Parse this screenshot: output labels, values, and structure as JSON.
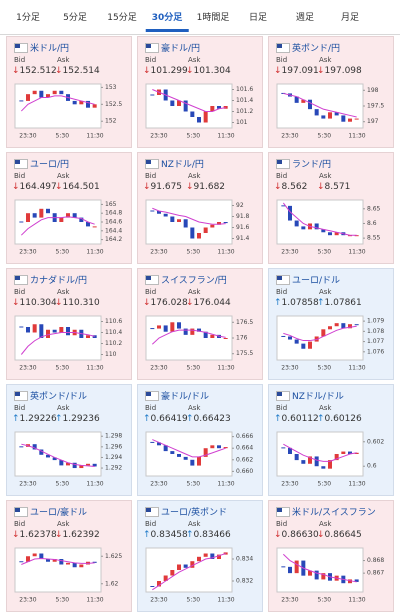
{
  "tabs": [
    "1分足",
    "5分足",
    "15分足",
    "30分足",
    "1時間足",
    "日足",
    "週足",
    "月足"
  ],
  "selected_tab": 3,
  "bid_label": "Bid",
  "ask_label": "Ask",
  "time_labels": [
    "23:30",
    "5:30",
    "11:30"
  ],
  "tiles": [
    {
      "name": "米ドル/円",
      "trend": "down",
      "bid": "↓152.512",
      "ask": "↓152.514",
      "ylim": [
        151.8,
        153.1
      ],
      "yticks": [
        153,
        152.5,
        152
      ],
      "closes": [
        152.6,
        152.8,
        152.9,
        152.7,
        152.8,
        152.9,
        152.8,
        152.6,
        152.5,
        152.6,
        152.4,
        152.5
      ],
      "ma": [
        152.3,
        152.5,
        152.6,
        152.7,
        152.7,
        152.75,
        152.75,
        152.7,
        152.65,
        152.6,
        152.55,
        152.5
      ]
    },
    {
      "name": "豪ドル/円",
      "trend": "down",
      "bid": "↓101.299",
      "ask": "↓101.304",
      "ylim": [
        100.9,
        101.7
      ],
      "yticks": [
        101.6,
        101.4,
        101.2,
        101
      ],
      "closes": [
        101.5,
        101.6,
        101.4,
        101.3,
        101.4,
        101.2,
        101.1,
        101.0,
        101.2,
        101.3,
        101.25,
        101.3
      ],
      "ma": [
        101.6,
        101.55,
        101.5,
        101.45,
        101.4,
        101.35,
        101.3,
        101.25,
        101.2,
        101.2,
        101.25,
        101.27
      ]
    },
    {
      "name": "英ポンド/円",
      "trend": "down",
      "bid": "↓197.091",
      "ask": "↓197.098",
      "ylim": [
        196.8,
        198.2
      ],
      "yticks": [
        198,
        197.5,
        197
      ],
      "closes": [
        197.9,
        197.8,
        197.6,
        197.7,
        197.4,
        197.2,
        197.1,
        197.3,
        197.2,
        197.0,
        197.1,
        197.1
      ],
      "ma": [
        197.9,
        197.85,
        197.8,
        197.7,
        197.6,
        197.5,
        197.4,
        197.35,
        197.3,
        197.25,
        197.2,
        197.15
      ]
    },
    {
      "name": "ユーロ/円",
      "trend": "down",
      "bid": "↓164.497",
      "ask": "↓164.501",
      "ylim": [
        164.1,
        165.1
      ],
      "yticks": [
        165,
        164.8,
        164.6,
        164.4,
        164.2
      ],
      "closes": [
        164.6,
        164.8,
        164.7,
        164.9,
        164.8,
        164.6,
        164.7,
        164.8,
        164.7,
        164.6,
        164.5,
        164.5
      ],
      "ma": [
        164.3,
        164.45,
        164.55,
        164.65,
        164.7,
        164.7,
        164.7,
        164.72,
        164.7,
        164.68,
        164.6,
        164.55
      ]
    },
    {
      "name": "NZドル/円",
      "trend": "down",
      "bid": "↓91.675",
      "ask": "↓91.682",
      "ylim": [
        91.3,
        92.1
      ],
      "yticks": [
        92,
        91.8,
        91.6,
        91.4
      ],
      "closes": [
        91.9,
        91.85,
        91.8,
        91.7,
        91.75,
        91.6,
        91.4,
        91.5,
        91.6,
        91.65,
        91.7,
        91.68
      ],
      "ma": [
        91.95,
        91.9,
        91.88,
        91.85,
        91.82,
        91.8,
        91.75,
        91.7,
        91.68,
        91.66,
        91.66,
        91.67
      ]
    },
    {
      "name": "ランド/円",
      "trend": "down",
      "bid": "↓8.562",
      "ask": "↓8.571",
      "ylim": [
        8.53,
        8.68
      ],
      "yticks": [
        8.65,
        8.6,
        8.55
      ],
      "closes": [
        8.66,
        8.61,
        8.59,
        8.58,
        8.6,
        8.58,
        8.57,
        8.56,
        8.57,
        8.56,
        8.56,
        8.56
      ],
      "ma": [
        8.67,
        8.64,
        8.62,
        8.6,
        8.59,
        8.585,
        8.58,
        8.575,
        8.57,
        8.565,
        8.56,
        8.56
      ]
    },
    {
      "name": "カナダドル/円",
      "trend": "down",
      "bid": "↓110.304",
      "ask": "↓110.310",
      "ylim": [
        109.9,
        110.7
      ],
      "yticks": [
        110.6,
        110.4,
        110.2,
        110
      ],
      "closes": [
        110.5,
        110.4,
        110.55,
        110.3,
        110.45,
        110.4,
        110.5,
        110.35,
        110.45,
        110.3,
        110.35,
        110.3
      ],
      "ma": [
        110.0,
        110.15,
        110.25,
        110.32,
        110.36,
        110.38,
        110.4,
        110.4,
        110.4,
        110.38,
        110.36,
        110.33
      ]
    },
    {
      "name": "スイスフラン/円",
      "trend": "down",
      "bid": "↓176.028",
      "ask": "↓176.044",
      "ylim": [
        175.3,
        176.7
      ],
      "yticks": [
        176.5,
        176,
        175.5
      ],
      "closes": [
        176.3,
        176.4,
        176.2,
        176.5,
        176.3,
        176.1,
        176.3,
        176.2,
        176.0,
        176.1,
        176.0,
        176.0
      ],
      "ma": [
        175.8,
        176.0,
        176.1,
        176.2,
        176.25,
        176.25,
        176.25,
        176.22,
        176.18,
        176.12,
        176.06,
        176.02
      ]
    },
    {
      "name": "ユーロ/ドル",
      "trend": "up",
      "bid": "↑1.07858",
      "ask": "↑1.07861",
      "ylim": [
        1.0752,
        1.0795
      ],
      "yticks": [
        1.079,
        1.078,
        1.077,
        1.076
      ],
      "closes": [
        1.0775,
        1.0772,
        1.0768,
        1.0763,
        1.077,
        1.0775,
        1.0782,
        1.0785,
        1.0788,
        1.0783,
        1.0787,
        1.0786
      ],
      "ma": [
        1.0778,
        1.0776,
        1.0773,
        1.0771,
        1.0771,
        1.0772,
        1.0775,
        1.0778,
        1.0781,
        1.0783,
        1.0784,
        1.0785
      ]
    },
    {
      "name": "英ポンド/ドル",
      "trend": "up",
      "bid": "↑1.29226",
      "ask": "↑1.29236",
      "ylim": [
        1.2905,
        1.2988
      ],
      "yticks": [
        1.298,
        1.296,
        1.294,
        1.292
      ],
      "closes": [
        1.296,
        1.2965,
        1.2955,
        1.2945,
        1.294,
        1.2935,
        1.2925,
        1.293,
        1.292,
        1.2925,
        1.2928,
        1.2923
      ],
      "ma": [
        1.2965,
        1.2962,
        1.2958,
        1.2952,
        1.2946,
        1.294,
        1.2935,
        1.293,
        1.2927,
        1.2925,
        1.2924,
        1.2923
      ]
    },
    {
      "name": "豪ドル/ドル",
      "trend": "up",
      "bid": "↑0.66419",
      "ask": "↑0.66423",
      "ylim": [
        0.6592,
        0.6668
      ],
      "yticks": [
        0.666,
        0.664,
        0.662,
        {
          "value": 0.66,
          "label": "0.660"
        }
      ],
      "closes": [
        0.665,
        0.6645,
        0.6635,
        0.663,
        0.6625,
        0.662,
        0.661,
        0.6625,
        0.664,
        0.6645,
        0.664,
        0.6642
      ],
      "ma": [
        0.6655,
        0.665,
        0.6645,
        0.664,
        0.6635,
        0.663,
        0.6625,
        0.6625,
        0.6628,
        0.6632,
        0.6636,
        0.664
      ]
    },
    {
      "name": "NZドル/ドル",
      "trend": "up",
      "bid": "↑0.60112",
      "ask": "↑0.60126",
      "ylim": [
        0.5992,
        0.6028
      ],
      "yticks": [
        0.602,
        0.6
      ],
      "closes": [
        0.6015,
        0.601,
        0.6005,
        0.6002,
        0.6008,
        0.6,
        0.5998,
        0.6005,
        0.601,
        0.6012,
        0.601,
        0.6011
      ],
      "ma": [
        0.6018,
        0.6015,
        0.6012,
        0.6009,
        0.6007,
        0.6005,
        0.6004,
        0.6004,
        0.6006,
        0.6008,
        0.601,
        0.6011
      ]
    },
    {
      "name": "ユーロ/豪ドル",
      "trend": "down",
      "bid": "↓1.62378",
      "ask": "↓1.62392",
      "ylim": [
        1.6185,
        1.6265
      ],
      "yticks": [
        1.625,
        1.62
      ],
      "closes": [
        1.624,
        1.625,
        1.6255,
        1.6245,
        1.624,
        1.6245,
        1.6235,
        1.6238,
        1.623,
        1.6235,
        1.624,
        1.6238
      ],
      "ma": [
        1.6235,
        1.624,
        1.6245,
        1.6246,
        1.6245,
        1.6244,
        1.6242,
        1.624,
        1.6238,
        1.6237,
        1.6237,
        1.6238
      ]
    },
    {
      "name": "ユーロ/英ポンド",
      "trend": "up",
      "bid": "↑0.83458",
      "ask": "↑0.83466",
      "ylim": [
        0.831,
        0.835
      ],
      "yticks": [
        0.834,
        0.832
      ],
      "closes": [
        0.8315,
        0.832,
        0.8325,
        0.833,
        0.8335,
        0.8332,
        0.8338,
        0.8342,
        0.8345,
        0.834,
        0.8344,
        0.8346
      ],
      "ma": [
        0.8312,
        0.8316,
        0.832,
        0.8324,
        0.8328,
        0.8331,
        0.8334,
        0.8337,
        0.834,
        0.8341,
        0.8343,
        0.8345
      ]
    },
    {
      "name": "米ドル/スイスフラン",
      "trend": "down",
      "bid": "↓0.86630",
      "ask": "↓0.86645",
      "ylim": [
        0.8655,
        0.869
      ],
      "yticks": [
        0.868,
        0.867
      ],
      "closes": [
        0.8675,
        0.867,
        0.868,
        0.8668,
        0.8672,
        0.8665,
        0.867,
        0.8664,
        0.8668,
        0.8662,
        0.8665,
        0.8663
      ],
      "ma": [
        0.8685,
        0.868,
        0.8677,
        0.8674,
        0.8672,
        0.867,
        0.8669,
        0.8667,
        0.8666,
        0.8665,
        0.8664,
        0.8663
      ]
    }
  ]
}
